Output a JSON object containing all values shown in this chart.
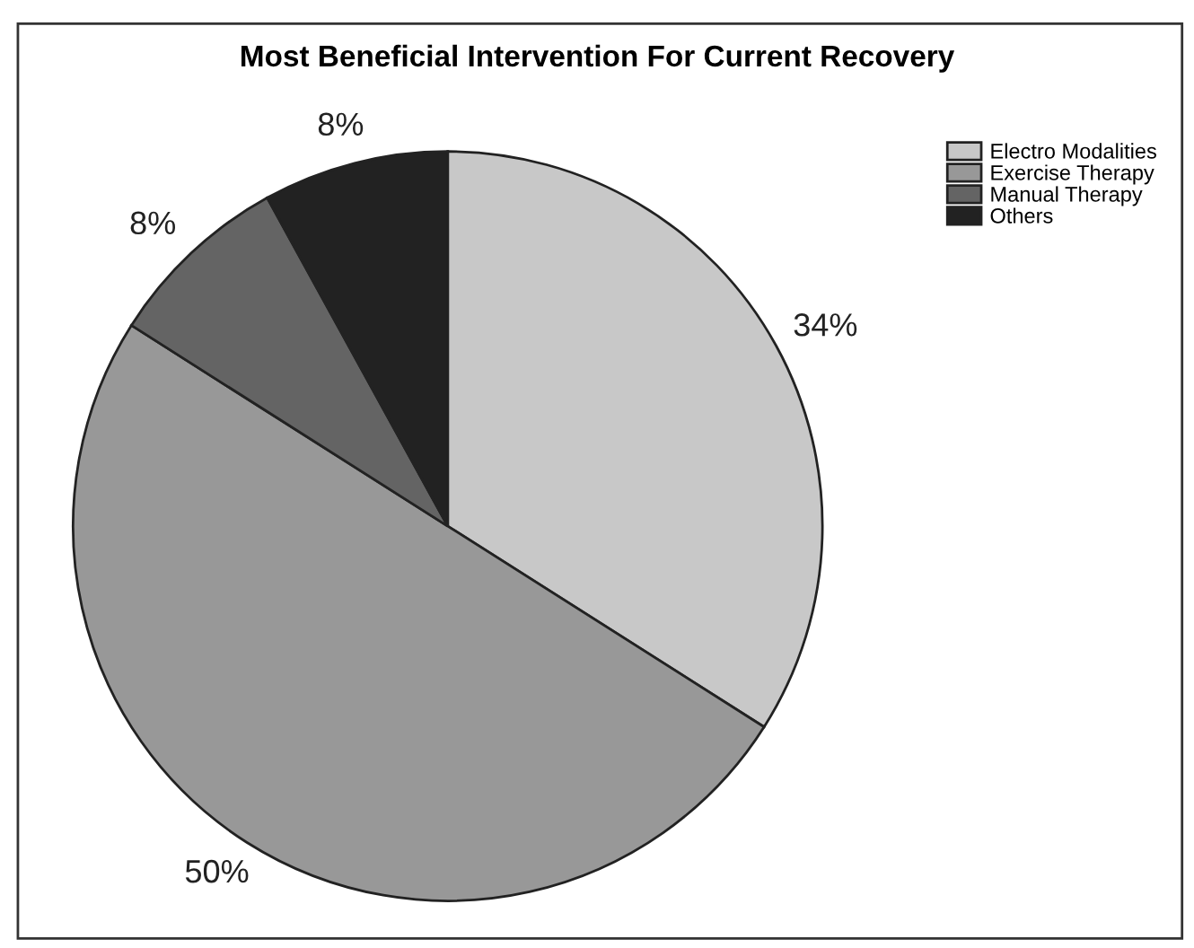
{
  "chart_data": {
    "type": "pie",
    "title": "Most Beneficial Intervention For Current Recovery",
    "categories": [
      "Electro Modalities",
      "Exercise Therapy",
      "Manual Therapy",
      "Others"
    ],
    "values": [
      34,
      50,
      8,
      8
    ],
    "colors": [
      "#c8c8c8",
      "#989898",
      "#646464",
      "#222222"
    ],
    "value_labels": [
      "34%",
      "50%",
      "8%",
      "8%"
    ],
    "legend": "top right"
  }
}
